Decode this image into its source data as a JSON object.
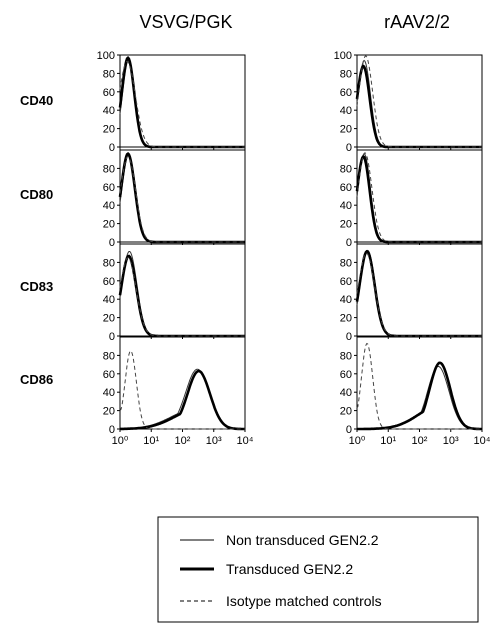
{
  "column_titles": [
    "VSVG/PGK",
    "rAAV2/2"
  ],
  "row_labels": [
    "CD40",
    "CD80",
    "CD83",
    "CD86"
  ],
  "legend": {
    "entries": [
      {
        "label": "Non transduced GEN2.2",
        "style": "thin"
      },
      {
        "label": "Transduced GEN2.2",
        "style": "thick"
      },
      {
        "label": "Isotype matched controls",
        "style": "dashed"
      }
    ]
  },
  "chart_data": {
    "type": "line",
    "chart_kind": "flow cytometry histograms",
    "x_scale": "log",
    "xlim": [
      1,
      10000
    ],
    "x_tick_labels": [
      "10⁰",
      "10¹",
      "10²",
      "10³",
      "10⁴"
    ],
    "ylim": [
      0,
      100
    ],
    "y_tick_labels_top_row": [
      "0",
      "20",
      "40",
      "60",
      "80",
      "100"
    ],
    "y_tick_labels": [
      "0",
      "20",
      "40",
      "60",
      "80"
    ],
    "grid": false,
    "legend_position": "bottom-right",
    "panels": [
      {
        "column": "VSVG/PGK",
        "row": "CD40",
        "series": [
          {
            "name": "Non transduced GEN2.2",
            "peak_x": 1.9,
            "peak_y": 95,
            "width": 0.2
          },
          {
            "name": "Transduced GEN2.2",
            "peak_x": 1.8,
            "peak_y": 97,
            "width": 0.2
          },
          {
            "name": "Isotype matched controls",
            "peak_x": 1.7,
            "peak_y": 93,
            "width": 0.26
          }
        ]
      },
      {
        "column": "VSVG/PGK",
        "row": "CD80",
        "series": [
          {
            "name": "Non transduced GEN2.2",
            "peak_x": 1.9,
            "peak_y": 95,
            "width": 0.22
          },
          {
            "name": "Transduced GEN2.2",
            "peak_x": 1.8,
            "peak_y": 96,
            "width": 0.22
          },
          {
            "name": "Isotype matched controls",
            "peak_x": 1.8,
            "peak_y": 93,
            "width": 0.24
          }
        ]
      },
      {
        "column": "VSVG/PGK",
        "row": "CD83",
        "series": [
          {
            "name": "Non transduced GEN2.2",
            "peak_x": 2.0,
            "peak_y": 92,
            "width": 0.24
          },
          {
            "name": "Transduced GEN2.2",
            "peak_x": 1.9,
            "peak_y": 87,
            "width": 0.24
          },
          {
            "name": "Isotype matched controls",
            "peak_x": 1.8,
            "peak_y": 85,
            "width": 0.26
          }
        ]
      },
      {
        "column": "VSVG/PGK",
        "row": "CD86",
        "series": [
          {
            "name": "Non transduced GEN2.2",
            "peak_x": 300,
            "peak_y": 65,
            "width": 0.38
          },
          {
            "name": "Transduced GEN2.2",
            "peak_x": 330,
            "peak_y": 63,
            "width": 0.36
          },
          {
            "name": "Isotype matched controls",
            "peak_x": 2.2,
            "peak_y": 85,
            "width": 0.18
          }
        ]
      },
      {
        "column": "rAAV2/2",
        "row": "CD40",
        "series": [
          {
            "name": "Non transduced GEN2.2",
            "peak_x": 1.7,
            "peak_y": 94,
            "width": 0.2
          },
          {
            "name": "Transduced GEN2.2",
            "peak_x": 1.6,
            "peak_y": 88,
            "width": 0.2
          },
          {
            "name": "Isotype matched controls",
            "peak_x": 1.9,
            "peak_y": 99,
            "width": 0.22
          }
        ]
      },
      {
        "column": "rAAV2/2",
        "row": "CD80",
        "series": [
          {
            "name": "Non transduced GEN2.2",
            "peak_x": 1.7,
            "peak_y": 96,
            "width": 0.2
          },
          {
            "name": "Transduced GEN2.2",
            "peak_x": 1.6,
            "peak_y": 93,
            "width": 0.2
          },
          {
            "name": "Isotype matched controls",
            "peak_x": 1.8,
            "peak_y": 97,
            "width": 0.22
          }
        ]
      },
      {
        "column": "rAAV2/2",
        "row": "CD83",
        "series": [
          {
            "name": "Non transduced GEN2.2",
            "peak_x": 2.2,
            "peak_y": 93,
            "width": 0.24
          },
          {
            "name": "Transduced GEN2.2",
            "peak_x": 2.1,
            "peak_y": 92,
            "width": 0.24
          },
          {
            "name": "Isotype matched controls",
            "peak_x": 2.0,
            "peak_y": 90,
            "width": 0.26
          }
        ]
      },
      {
        "column": "rAAV2/2",
        "row": "CD86",
        "series": [
          {
            "name": "Non transduced GEN2.2",
            "peak_x": 400,
            "peak_y": 68,
            "width": 0.34
          },
          {
            "name": "Transduced GEN2.2",
            "peak_x": 450,
            "peak_y": 72,
            "width": 0.33
          },
          {
            "name": "Isotype matched controls",
            "peak_x": 2.1,
            "peak_y": 93,
            "width": 0.18
          }
        ]
      }
    ]
  }
}
